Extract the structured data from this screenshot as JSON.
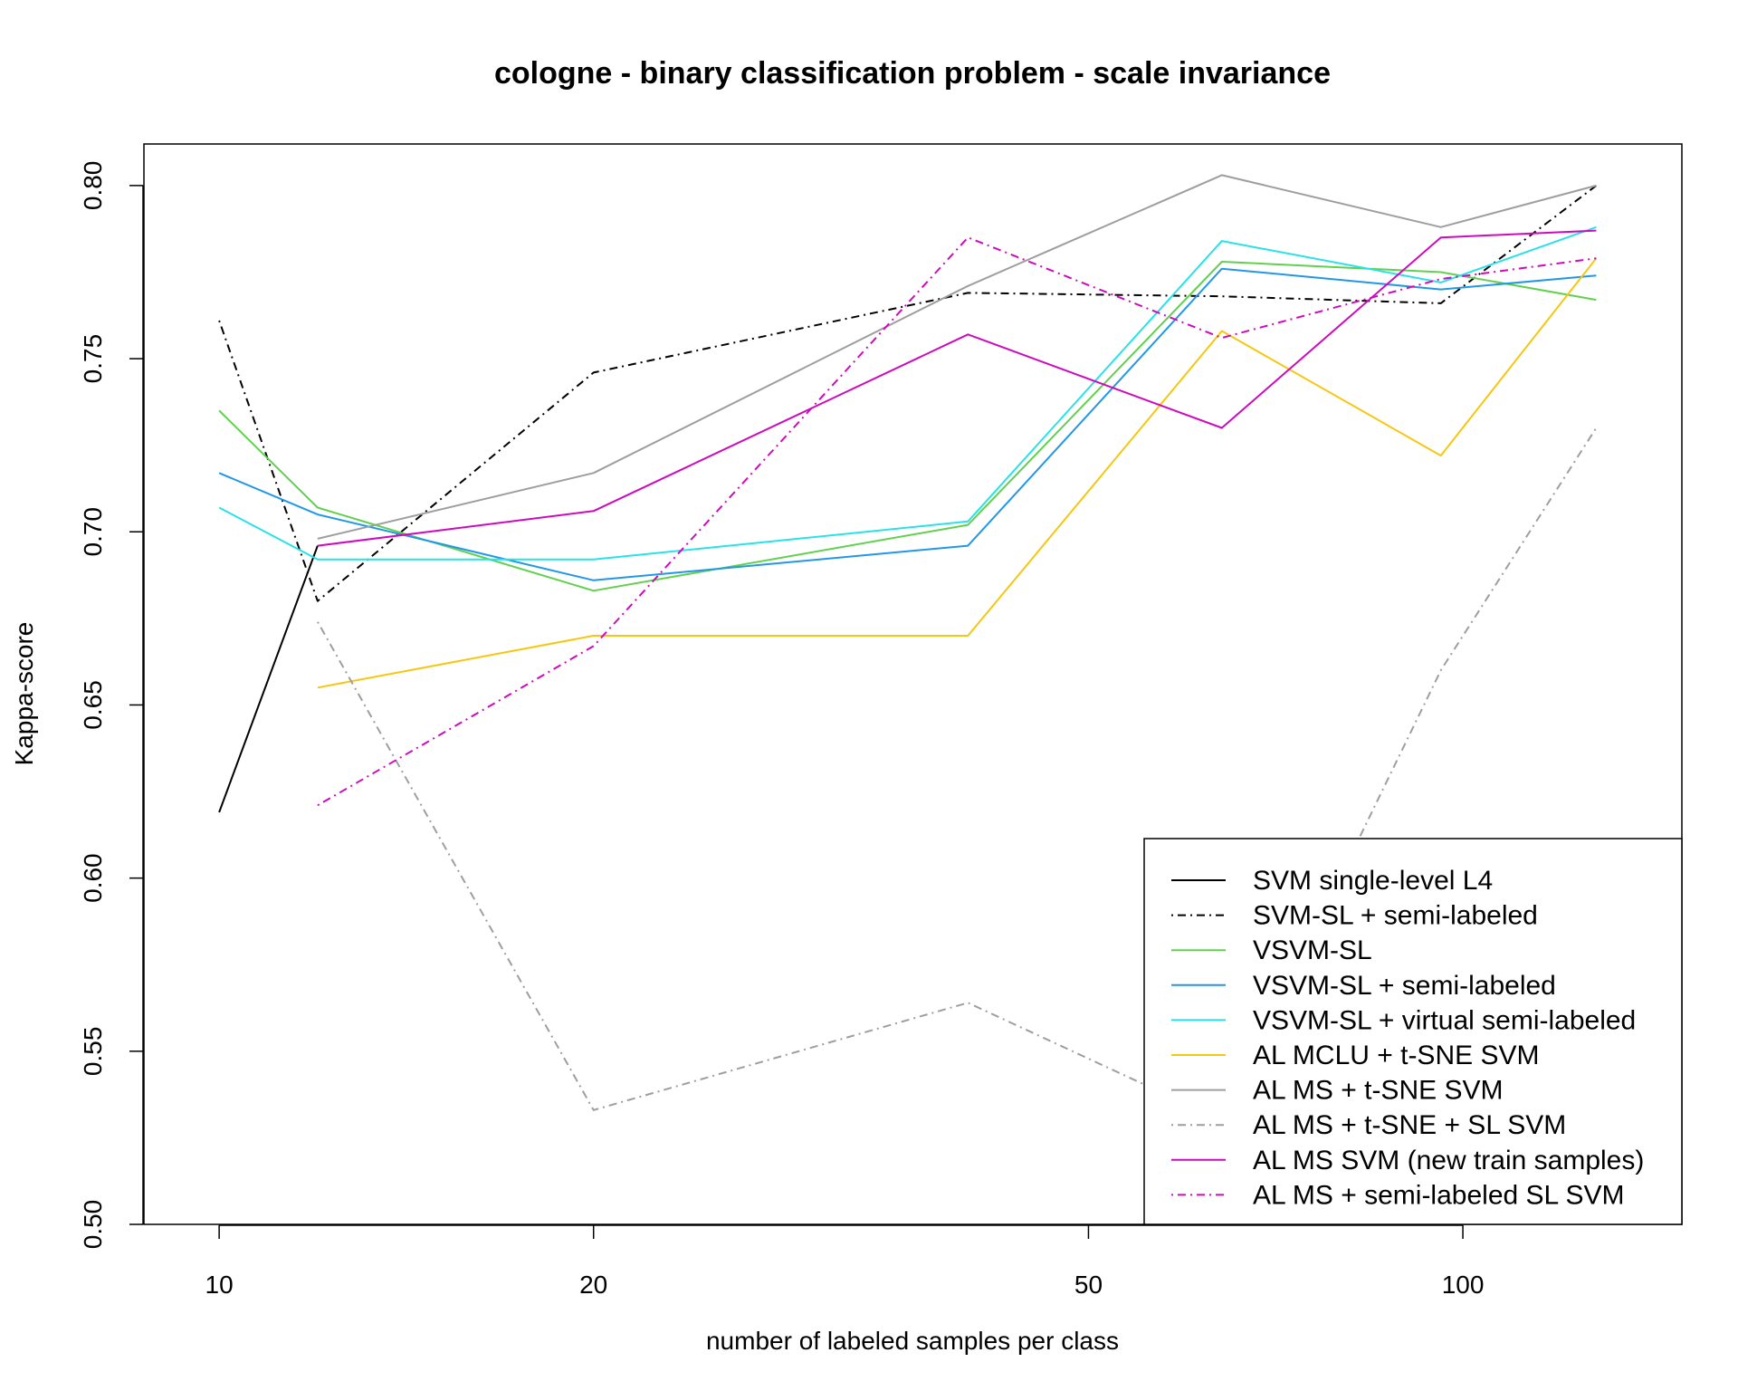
{
  "chart_data": {
    "type": "line",
    "title": "cologne - binary classification problem - scale invariance",
    "xlabel": "number of labeled samples per class",
    "ylabel": "Kappa-score",
    "x_scale": "log",
    "xlim": [
      8.7,
      150
    ],
    "ylim": [
      0.5,
      0.812
    ],
    "x_ticks": [
      10,
      20,
      50,
      100
    ],
    "x_tick_labels": [
      "10",
      "20",
      "50",
      "100"
    ],
    "y_ticks": [
      0.5,
      0.55,
      0.6,
      0.65,
      0.7,
      0.75,
      0.8
    ],
    "y_tick_labels": [
      "0.50",
      "0.55",
      "0.60",
      "0.65",
      "0.70",
      "0.75",
      "0.80"
    ],
    "grid": false,
    "legend_position": "bottom-right",
    "series": [
      {
        "name": "SVM single-level L4",
        "color": "#000000",
        "dash": "solid",
        "x": [
          10,
          12
        ],
        "y": [
          0.619,
          0.696
        ]
      },
      {
        "name": "SVM-SL + semi-labeled",
        "color": "#000000",
        "dash": "dotdash",
        "x": [
          10,
          12,
          20,
          40,
          64,
          96,
          128
        ],
        "y": [
          0.761,
          0.68,
          0.746,
          0.769,
          0.768,
          0.766,
          0.8
        ]
      },
      {
        "name": "VSVM-SL",
        "color": "#61D04F",
        "dash": "solid",
        "x": [
          10,
          12,
          20,
          40,
          64,
          96,
          128
        ],
        "y": [
          0.735,
          0.707,
          0.683,
          0.702,
          0.778,
          0.775,
          0.767
        ]
      },
      {
        "name": "VSVM-SL + semi-labeled",
        "color": "#2297E6",
        "dash": "solid",
        "x": [
          10,
          12,
          20,
          40,
          64,
          96,
          128
        ],
        "y": [
          0.717,
          0.705,
          0.686,
          0.696,
          0.776,
          0.77,
          0.774
        ]
      },
      {
        "name": "VSVM-SL + virtual semi-labeled",
        "color": "#28E2E5",
        "dash": "solid",
        "x": [
          10,
          12,
          20,
          40,
          64,
          96,
          128
        ],
        "y": [
          0.707,
          0.692,
          0.692,
          0.703,
          0.784,
          0.772,
          0.788
        ]
      },
      {
        "name": "AL MCLU + t-SNE SVM",
        "color": "#F5C710",
        "dash": "solid",
        "x": [
          12,
          20,
          40,
          64,
          96,
          128
        ],
        "y": [
          0.655,
          0.67,
          0.67,
          0.758,
          0.722,
          0.779
        ]
      },
      {
        "name": "AL MS + t-SNE SVM",
        "color": "#9E9E9E",
        "dash": "solid",
        "x": [
          12,
          20,
          40,
          64,
          96,
          128
        ],
        "y": [
          0.698,
          0.717,
          0.771,
          0.803,
          0.788,
          0.8
        ]
      },
      {
        "name": "AL MS + t-SNE + SL SVM",
        "color": "#9E9E9E",
        "dash": "dotdash",
        "x": [
          12,
          20,
          40,
          64,
          96,
          128
        ],
        "y": [
          0.674,
          0.533,
          0.564,
          0.53,
          0.66,
          0.73
        ]
      },
      {
        "name": "AL MS SVM (new train samples)",
        "color": "#CD0BBC",
        "dash": "solid",
        "x": [
          12,
          20,
          40,
          64,
          96,
          128
        ],
        "y": [
          0.696,
          0.706,
          0.757,
          0.73,
          0.785,
          0.787
        ]
      },
      {
        "name": "AL MS + semi-labeled SL SVM",
        "color": "#CD0BBC",
        "dash": "dotdash",
        "x": [
          12,
          20,
          40,
          64,
          96,
          128
        ],
        "y": [
          0.621,
          0.667,
          0.785,
          0.756,
          0.773,
          0.779
        ]
      }
    ]
  }
}
